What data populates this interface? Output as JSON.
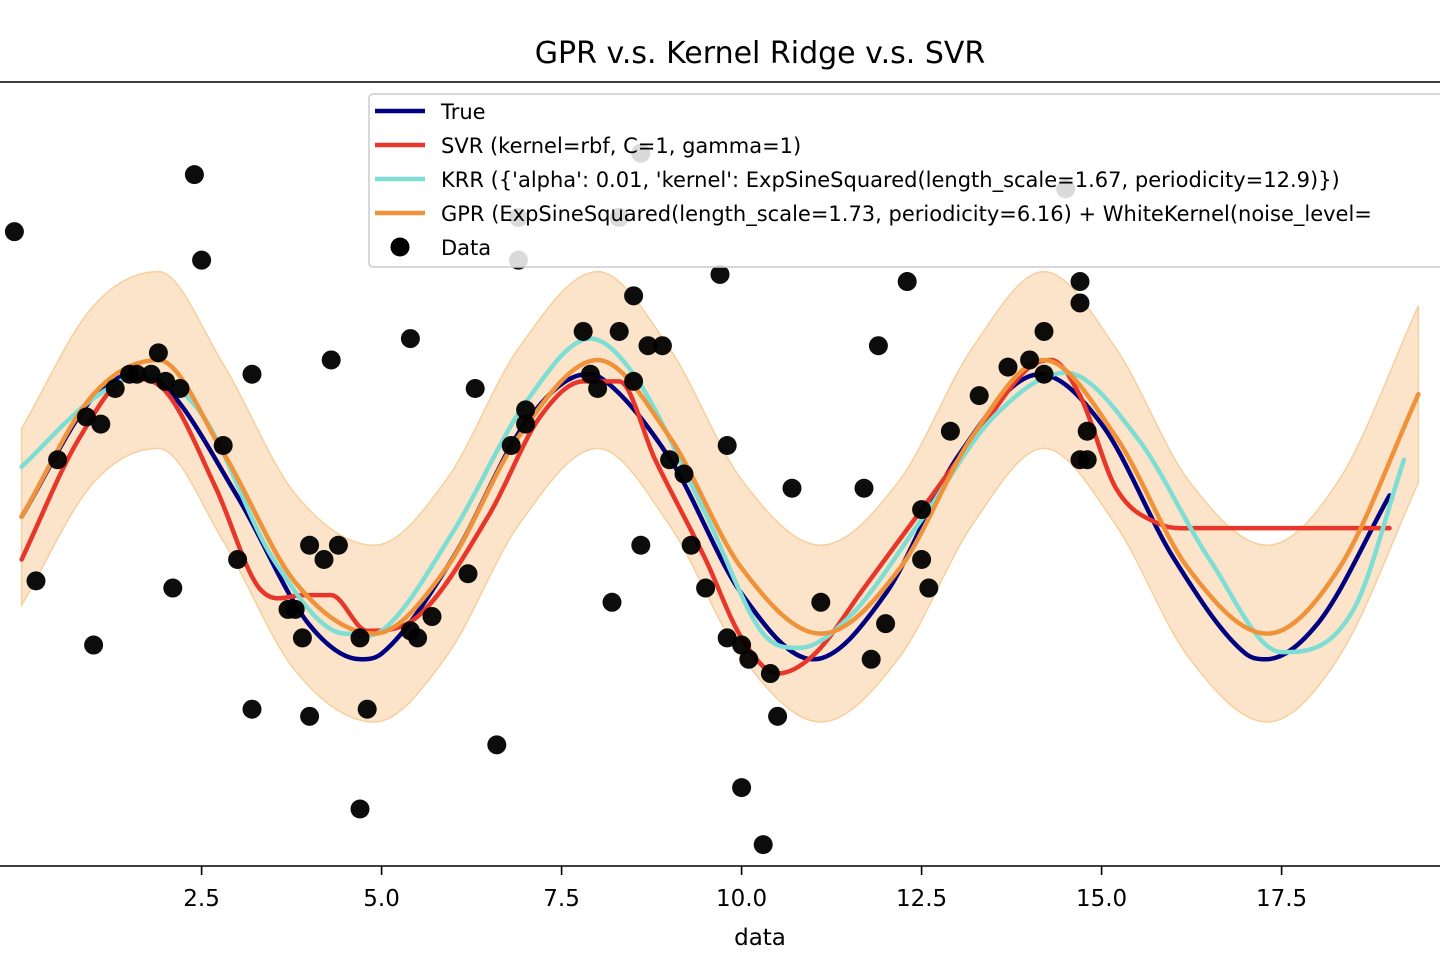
{
  "chart_data": {
    "type": "line",
    "title": "GPR v.s. Kernel Ridge v.s. SVR",
    "xlabel": "data",
    "ylabel": "",
    "xlim": [
      -0.3,
      19.7
    ],
    "ylim": [
      -2.45,
      3.05
    ],
    "x_ticks": [
      2.5,
      5.0,
      7.5,
      10.0,
      12.5,
      15.0,
      17.5
    ],
    "x_tick_labels": [
      "2.5",
      "5.0",
      "7.5",
      "10.0",
      "12.5",
      "15.0",
      "17.5"
    ],
    "legend_position": "upper-right",
    "colors": {
      "true": "#000080",
      "svr": "#e8362a",
      "krr": "#7fded4",
      "gpr": "#f0923a",
      "band": "#fbe3c6",
      "data": "#000000"
    },
    "legend": [
      {
        "key": "true",
        "label": "True",
        "kind": "line"
      },
      {
        "key": "svr",
        "label": "SVR (kernel=rbf, C=1, gamma=1)",
        "kind": "line"
      },
      {
        "key": "krr",
        "label": "KRR ({'alpha': 0.01, 'kernel': ExpSineSquared(length_scale=1.67, periodicity=12.9)})",
        "kind": "line"
      },
      {
        "key": "gpr",
        "label": "GPR (ExpSineSquared(length_scale=1.73, periodicity=6.16) + WhiteKernel(noise_level=",
        "kind": "line"
      },
      {
        "key": "data",
        "label": "Data",
        "kind": "marker"
      }
    ],
    "series": [
      {
        "name": "True",
        "key": "true",
        "x": [
          0,
          1,
          1.57,
          2,
          3,
          4,
          4.71,
          5,
          6,
          7,
          7.85,
          8,
          9,
          10,
          10.99,
          11,
          12,
          13,
          14.14,
          15,
          16,
          17,
          17.28,
          18,
          19
        ],
        "y": [
          0,
          0.84,
          1.0,
          0.91,
          0.14,
          -0.76,
          -1.0,
          -0.96,
          -0.28,
          0.66,
          1.0,
          0.99,
          0.41,
          -0.54,
          -1.0,
          -1.0,
          -0.54,
          0.42,
          1.0,
          0.65,
          -0.29,
          -0.96,
          -1.0,
          -0.75,
          0.15
        ]
      },
      {
        "name": "SVR (kernel=rbf, C=1, gamma=1)",
        "key": "svr",
        "x": [
          0,
          0.8,
          1.5,
          2,
          2.7,
          3.3,
          3.9,
          4.3,
          4.8,
          5.5,
          6.5,
          7.2,
          7.8,
          8.3,
          8.8,
          9.5,
          10,
          10.5,
          11,
          11.7,
          12.5,
          13.3,
          14,
          14.3,
          14.7,
          15.2,
          15.8,
          16.3,
          17,
          18,
          19
        ],
        "y": [
          -0.3,
          0.55,
          0.97,
          0.88,
          0.2,
          -0.5,
          -0.55,
          -0.55,
          -0.8,
          -0.7,
          0.02,
          0.7,
          0.95,
          0.95,
          0.4,
          -0.3,
          -0.85,
          -1.1,
          -0.97,
          -0.5,
          0.05,
          0.6,
          1.05,
          1.1,
          0.85,
          0.2,
          -0.05,
          -0.08,
          -0.08,
          -0.08,
          -0.08
        ]
      },
      {
        "name": "KRR ({'alpha': 0.01, 'kernel': ExpSineSquared(length_scale=1.67, periodicity=12.9)})",
        "key": "krr",
        "x": [
          0,
          1,
          1.7,
          2.5,
          3.5,
          4.5,
          5,
          6,
          7,
          7.9,
          8.5,
          9.5,
          10.3,
          10.8,
          11.5,
          12.5,
          13.5,
          14.5,
          15.5,
          16.5,
          17.5,
          18.5,
          19.2
        ],
        "y": [
          0.35,
          0.83,
          1.0,
          0.72,
          -0.3,
          -0.82,
          -0.8,
          -0.1,
          0.8,
          1.25,
          1.0,
          0.02,
          -0.82,
          -0.92,
          -0.7,
          -0.02,
          0.7,
          1.01,
          0.55,
          -0.3,
          -0.95,
          -0.65,
          0.4
        ]
      },
      {
        "name": "GPR (ExpSineSquared(length_scale=1.73, periodicity=6.16) + WhiteKernel(noise_level=",
        "key": "gpr",
        "x": [
          0,
          1,
          1.9,
          2.8,
          3.8,
          4.9,
          5.9,
          6.9,
          8.0,
          9.0,
          10.0,
          11.1,
          12.2,
          13.2,
          14.2,
          15.2,
          16.2,
          17.3,
          18.3,
          19.4
        ],
        "y": [
          0,
          0.86,
          1.1,
          0.45,
          -0.46,
          -0.82,
          -0.36,
          0.56,
          1.1,
          0.56,
          -0.36,
          -0.82,
          -0.36,
          0.56,
          1.1,
          0.56,
          -0.36,
          -0.82,
          -0.36,
          0.86
        ]
      }
    ],
    "band": {
      "key": "band",
      "x": [
        0,
        1,
        1.9,
        2.8,
        3.8,
        4.9,
        5.9,
        6.9,
        8.0,
        9.0,
        10.0,
        11.1,
        12.2,
        13.2,
        14.2,
        15.2,
        16.2,
        17.3,
        18.3,
        19.4
      ],
      "upper": [
        0.62,
        1.48,
        1.72,
        1.07,
        0.16,
        -0.2,
        0.26,
        1.18,
        1.72,
        1.18,
        0.26,
        -0.2,
        0.26,
        1.18,
        1.72,
        1.18,
        0.26,
        -0.2,
        0.26,
        1.48
      ],
      "lower": [
        -0.62,
        0.24,
        0.48,
        -0.17,
        -1.08,
        -1.44,
        -0.98,
        -0.06,
        0.48,
        -0.06,
        -0.98,
        -1.44,
        -0.98,
        -0.06,
        0.48,
        -0.06,
        -0.98,
        -1.44,
        -0.98,
        0.24
      ]
    },
    "points": {
      "name": "Data",
      "x": [
        -0.1,
        0.2,
        0.5,
        0.9,
        1.0,
        1.1,
        1.3,
        1.5,
        1.6,
        1.8,
        1.9,
        2.0,
        2.1,
        2.2,
        2.4,
        2.5,
        2.8,
        3.0,
        3.2,
        3.2,
        3.7,
        3.8,
        3.9,
        4.0,
        4.0,
        4.2,
        4.3,
        4.4,
        4.7,
        4.7,
        4.8,
        5.4,
        5.4,
        5.5,
        5.7,
        6.2,
        6.3,
        6.6,
        6.8,
        6.9,
        6.9,
        7.0,
        7.0,
        7.8,
        7.9,
        8.0,
        8.2,
        8.3,
        8.3,
        8.5,
        8.5,
        8.6,
        8.6,
        8.7,
        8.9,
        9.0,
        9.2,
        9.3,
        9.5,
        9.7,
        9.8,
        9.8,
        10.0,
        10.0,
        10.1,
        10.3,
        10.4,
        10.5,
        10.7,
        11.1,
        11.7,
        11.8,
        11.9,
        12.0,
        12.3,
        12.5,
        12.5,
        12.6,
        12.9,
        13.3,
        13.7,
        14.0,
        14.2,
        14.2,
        14.5,
        14.7,
        14.7,
        14.7,
        14.8,
        14.8
      ],
      "y": [
        2.0,
        -0.45,
        0.4,
        0.7,
        -0.9,
        0.65,
        0.9,
        1.0,
        1.0,
        1.0,
        1.15,
        0.95,
        -0.5,
        0.9,
        2.4,
        1.8,
        0.5,
        -0.3,
        -1.35,
        1.0,
        -0.65,
        -0.65,
        -0.85,
        -0.2,
        -1.4,
        -0.3,
        1.1,
        -0.2,
        -0.85,
        -2.05,
        -1.35,
        -0.8,
        1.25,
        -0.85,
        -0.7,
        -0.4,
        0.9,
        -1.6,
        0.5,
        1.8,
        2.1,
        0.65,
        0.75,
        1.3,
        1.0,
        0.9,
        -0.6,
        1.3,
        2.1,
        1.55,
        0.95,
        2.55,
        -0.2,
        1.2,
        1.2,
        0.4,
        0.3,
        -0.2,
        -0.5,
        1.7,
        0.5,
        -0.85,
        -0.9,
        -1.9,
        -1.0,
        -2.3,
        -1.1,
        -1.4,
        0.2,
        -0.6,
        0.2,
        -1.0,
        1.2,
        -0.75,
        1.65,
        0.05,
        -0.3,
        -0.5,
        0.6,
        0.85,
        1.05,
        1.1,
        1.3,
        1.0,
        2.3,
        1.5,
        1.65,
        0.4,
        0.4,
        0.6
      ]
    }
  }
}
